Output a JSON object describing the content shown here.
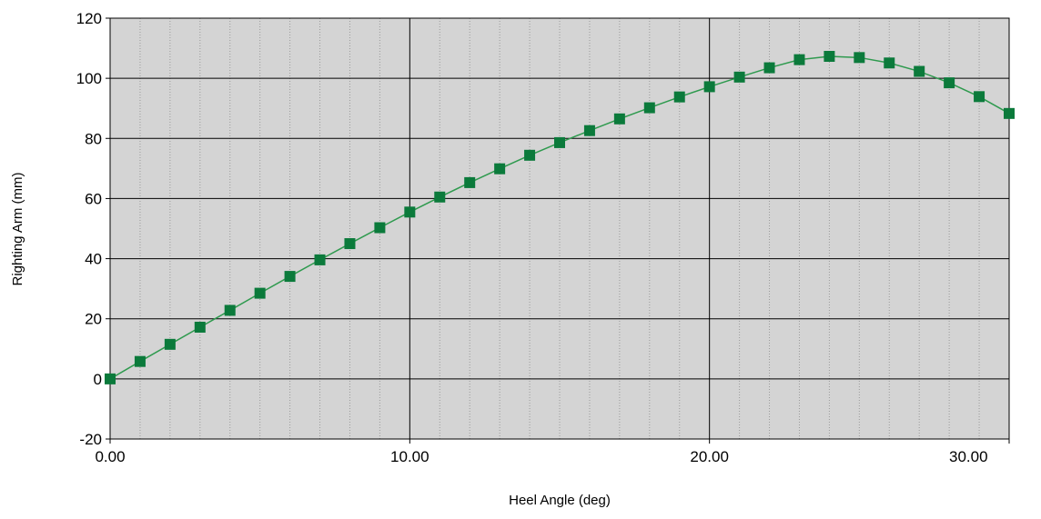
{
  "chart_data": {
    "type": "line",
    "title": "",
    "xlabel": "Heel Angle (deg)",
    "ylabel": "Righting Arm (mm)",
    "xlim": [
      0,
      30
    ],
    "ylim": [
      -20,
      120
    ],
    "x_ticks": [
      0,
      10,
      20,
      30
    ],
    "x_tick_labels": [
      "0.00",
      "10.00",
      "20.00",
      "30.00"
    ],
    "x_minor_step": 1,
    "y_ticks": [
      -20,
      0,
      20,
      40,
      60,
      80,
      100,
      120
    ],
    "y_tick_labels": [
      "-20",
      "0",
      "20",
      "40",
      "60",
      "80",
      "100",
      "120"
    ],
    "grid": true,
    "legend": "none",
    "colors": {
      "plot_background": "#d4d4d4",
      "major_grid": "#000000",
      "minor_grid": "#9a9a9a",
      "line": "#2e9a4e",
      "marker": "#0b7a3b"
    },
    "marker": "square",
    "series": [
      {
        "x": [
          0,
          1,
          2,
          3,
          4,
          5,
          6,
          7,
          8,
          9,
          10,
          11,
          12,
          13,
          14,
          15,
          16,
          17,
          18,
          19,
          20,
          21,
          22,
          23,
          24,
          25,
          26,
          27,
          28,
          29,
          30
        ],
        "values": [
          0,
          5.8,
          11.5,
          17.2,
          22.8,
          28.5,
          34.1,
          39.6,
          45.0,
          50.3,
          55.5,
          60.5,
          65.3,
          69.9,
          74.4,
          78.6,
          82.6,
          86.5,
          90.2,
          93.8,
          97.2,
          100.4,
          103.5,
          106.2,
          107.3,
          106.9,
          105.1,
          102.3,
          98.5,
          93.9,
          88.3
        ]
      }
    ]
  }
}
